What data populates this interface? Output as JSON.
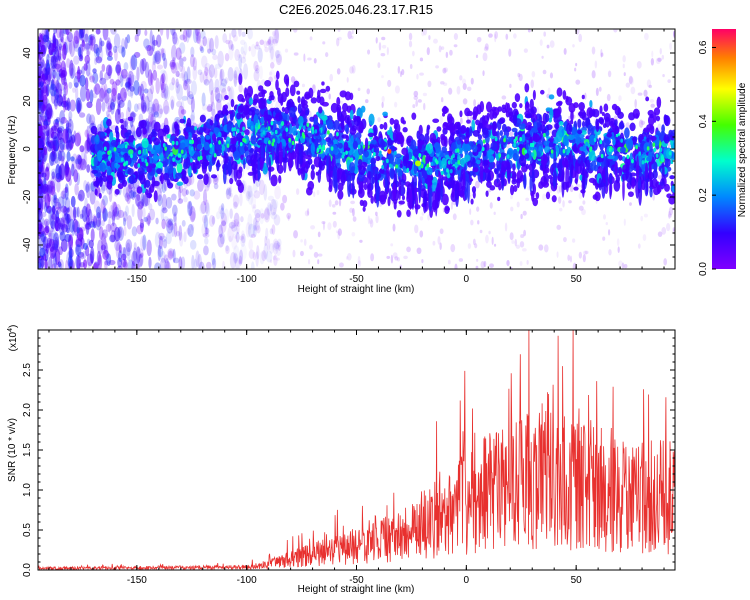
{
  "title": "C2E6.2025.046.23.17.R15",
  "chart_data": [
    {
      "type": "heatmap",
      "xlabel": "Height of straight line (km)",
      "ylabel": "Frequency (Hz)",
      "xlim": [
        -195,
        95
      ],
      "ylim": [
        -50,
        50
      ],
      "xticks": [
        -150,
        -100,
        -50,
        0,
        50
      ],
      "yticks": [
        -40,
        -20,
        0,
        20,
        40
      ],
      "colorbar": {
        "label": "Normalized spectral amplitude",
        "range": [
          0,
          0.65
        ],
        "ticks": [
          "0.0",
          "0.2",
          "0.4",
          "0.6"
        ],
        "colormap": "rainbow"
      },
      "description_values": {
        "band_center_hz": 0,
        "band_halfwidth_hz": 15,
        "peak_amplitude": 0.6,
        "peak_height_km": -35
      }
    },
    {
      "type": "line",
      "xlabel": "Height of straight line (km)",
      "ylabel": "SNR (10 * v/v)",
      "multiplier": "(x10",
      "multiplier_exp": "4",
      "xlim": [
        -195,
        95
      ],
      "ylim": [
        0,
        3.0
      ],
      "xticks": [
        -150,
        -100,
        -50,
        0,
        50
      ],
      "yticks": [
        "0.0",
        "0.5",
        "1.0",
        "1.5",
        "2.0",
        "2.5"
      ],
      "color": "#e8312f",
      "envelope": {
        "x": [
          -195,
          -100,
          -90,
          -80,
          -60,
          -40,
          -30,
          -20,
          -10,
          0,
          10,
          20,
          30,
          40,
          50,
          60,
          70,
          80,
          95
        ],
        "y": [
          0.03,
          0.05,
          0.1,
          0.2,
          0.35,
          0.5,
          0.6,
          0.8,
          1.0,
          1.2,
          1.4,
          1.5,
          1.6,
          1.6,
          1.5,
          1.5,
          1.4,
          1.3,
          1.3
        ]
      }
    }
  ]
}
